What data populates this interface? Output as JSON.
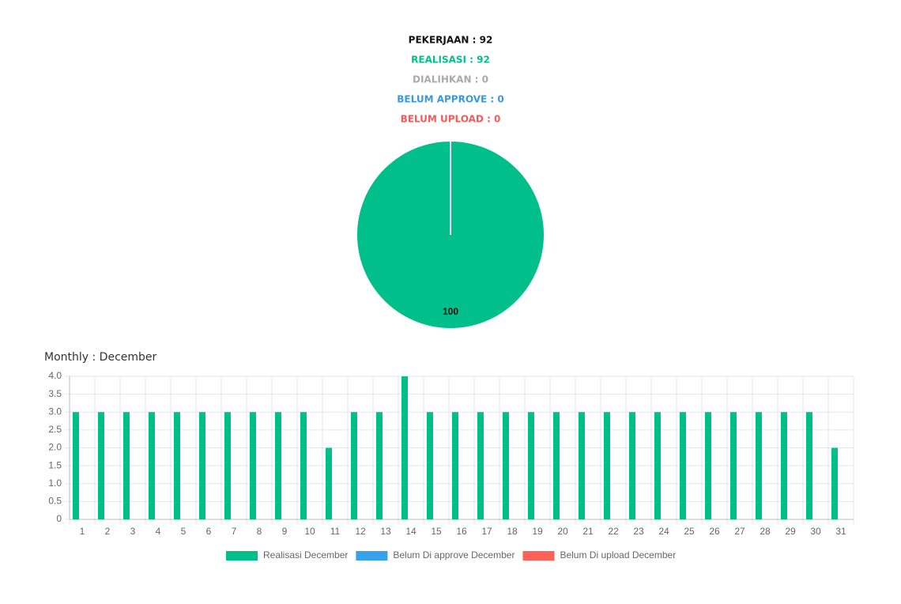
{
  "summary": [
    {
      "text": "PEKERJAAN : 92",
      "color": "#111111"
    },
    {
      "text": "REALISASI : 92",
      "color": "#00bf8a"
    },
    {
      "text": "DIALIHKAN : 0",
      "color": "#aaaaaa"
    },
    {
      "text": "BELUM APPROVE : 0",
      "color": "#3a9ad9"
    },
    {
      "text": "BELUM UPLOAD : 0",
      "color": "#f55a5a"
    }
  ],
  "chart_data": [
    {
      "type": "pie",
      "values": [
        100
      ],
      "value_labels": [
        "100"
      ],
      "colors": [
        "#00bf8a"
      ]
    },
    {
      "type": "bar",
      "title": "Monthly : December",
      "categories": [
        "1",
        "2",
        "3",
        "4",
        "5",
        "6",
        "7",
        "8",
        "9",
        "10",
        "11",
        "12",
        "13",
        "14",
        "15",
        "16",
        "17",
        "18",
        "19",
        "20",
        "21",
        "22",
        "23",
        "24",
        "25",
        "26",
        "27",
        "28",
        "29",
        "30",
        "31"
      ],
      "series": [
        {
          "name": "Realisasi December",
          "color": "#00bf8a",
          "values": [
            3,
            3,
            3,
            3,
            3,
            3,
            3,
            3,
            3,
            3,
            2,
            3,
            3,
            4,
            3,
            3,
            3,
            3,
            3,
            3,
            3,
            3,
            3,
            3,
            3,
            3,
            3,
            3,
            3,
            3,
            2
          ]
        },
        {
          "name": "Belum Di approve December",
          "color": "#36a2eb",
          "values": [
            0,
            0,
            0,
            0,
            0,
            0,
            0,
            0,
            0,
            0,
            0,
            0,
            0,
            0,
            0,
            0,
            0,
            0,
            0,
            0,
            0,
            0,
            0,
            0,
            0,
            0,
            0,
            0,
            0,
            0,
            0
          ]
        },
        {
          "name": "Belum Di upload December",
          "color": "#ff6058",
          "values": [
            0,
            0,
            0,
            0,
            0,
            0,
            0,
            0,
            0,
            0,
            0,
            0,
            0,
            0,
            0,
            0,
            0,
            0,
            0,
            0,
            0,
            0,
            0,
            0,
            0,
            0,
            0,
            0,
            0,
            0,
            0
          ]
        }
      ],
      "ylim": [
        0,
        4
      ],
      "yticks": [
        0,
        0.5,
        {
          "value": 1,
          "label": "1.0"
        },
        1.5,
        {
          "value": 2,
          "label": "2.0"
        },
        2.5,
        {
          "value": 3,
          "label": "3.0"
        },
        3.5,
        {
          "value": 4,
          "label": "4.0"
        }
      ],
      "grid": true,
      "legend": "bottom"
    }
  ]
}
